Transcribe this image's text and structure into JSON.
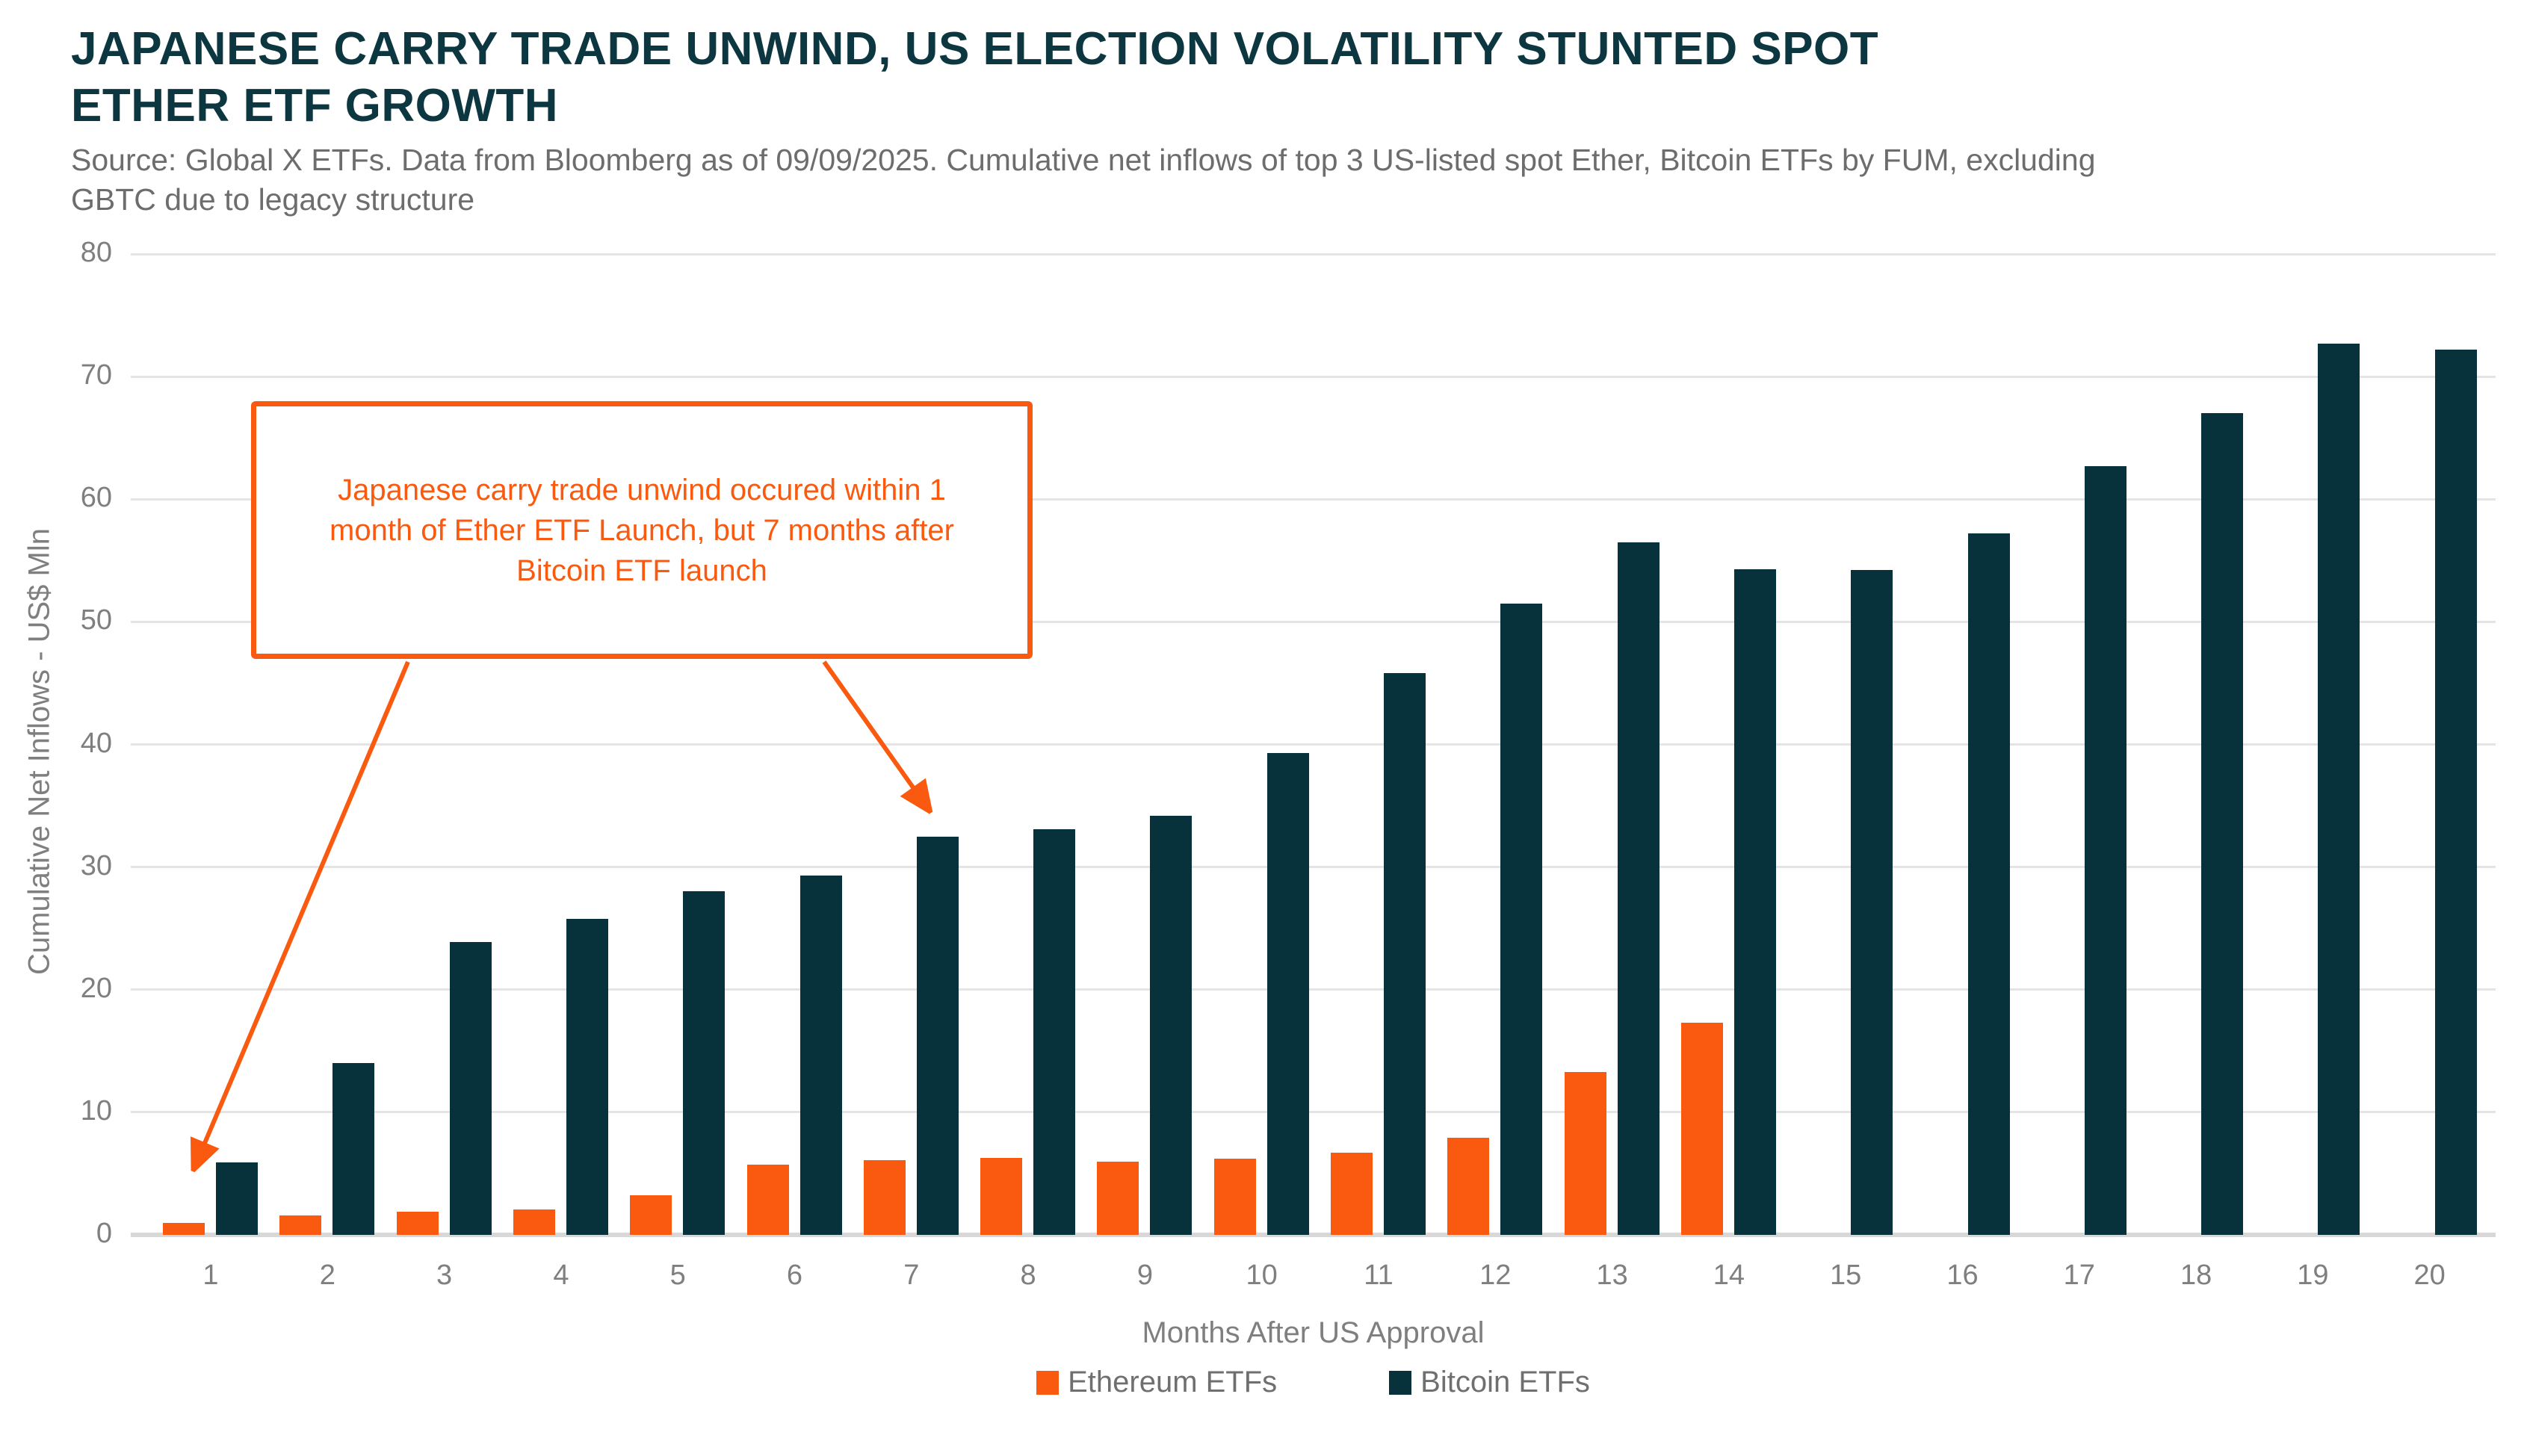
{
  "header": {
    "title": "JAPANESE CARRY TRADE UNWIND, US ELECTION VOLATILITY STUNTED SPOT ETHER ETF GROWTH",
    "subtitle": "Source: Global X ETFs. Data from Bloomberg as of 09/09/2025. Cumulative net inflows of top 3 US-listed spot Ether, Bitcoin ETFs by FUM, excluding GBTC due to legacy structure"
  },
  "annotation": {
    "text": "Japanese carry trade unwind occured within 1 month of Ether ETF Launch, but 7 months after Bitcoin ETF launch",
    "arrow_targets": [
      "month 1 Ethereum bar",
      "month 7 Bitcoin bar"
    ]
  },
  "chart_data": {
    "type": "bar",
    "title": "JAPANESE CARRY TRADE UNWIND, US ELECTION VOLATILITY STUNTED SPOT ETHER ETF GROWTH",
    "categories": [
      1,
      2,
      3,
      4,
      5,
      6,
      7,
      8,
      9,
      10,
      11,
      12,
      13,
      14,
      15,
      16,
      17,
      18,
      19,
      20
    ],
    "series": [
      {
        "name": "Ethereum ETFs",
        "color": "#fa5a0f",
        "values": [
          1.0,
          1.6,
          1.9,
          2.1,
          3.2,
          5.7,
          6.1,
          6.3,
          6.0,
          6.2,
          6.7,
          7.9,
          13.3,
          17.3,
          null,
          null,
          null,
          null,
          null,
          null
        ]
      },
      {
        "name": "Bitcoin ETFs",
        "color": "#07323c",
        "values": [
          5.9,
          14.0,
          23.9,
          25.8,
          28.0,
          29.3,
          32.5,
          33.1,
          34.2,
          39.3,
          45.8,
          51.5,
          56.5,
          54.3,
          54.2,
          57.2,
          62.7,
          67.0,
          72.7,
          72.2
        ]
      }
    ],
    "xlabel": "Months After US Approval",
    "ylabel": "Cumulative Net Inflows - US$ Mln",
    "ylim": [
      0,
      80
    ],
    "yticks": [
      0,
      10,
      20,
      30,
      40,
      50,
      60,
      70,
      80
    ],
    "grid": "horizontal",
    "legend_position": "bottom"
  },
  "colors": {
    "accent_orange": "#fa5a0f",
    "bar_teal": "#07323c",
    "title_text": "#0d3740",
    "subtitle_text": "#6d6d6d",
    "axis_text": "#7f7f7f",
    "gridline": "#e4e4e4"
  }
}
